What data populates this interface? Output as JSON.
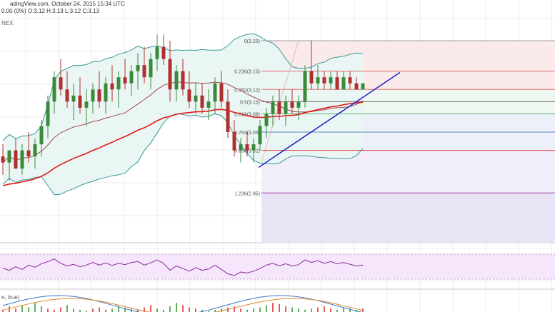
{
  "header": {
    "line1": "adingView.com, October 24, 2015 15:34 UTC",
    "line2": "0.00 (0%)  O:3.12  H:3.13  L:3.12  C:3.13",
    "exchange": "NEX"
  },
  "indicators": {
    "macd_label": "e, true)"
  },
  "colors": {
    "up": "#3a8a3a",
    "down": "#b03030",
    "ema": "#e01818",
    "sma": "#a04848",
    "bb": "#3a9898",
    "bb_fill": "#eaf6f4",
    "trend": "#2020c8",
    "rsi": "#8a2a9a",
    "rsi_bg": "#f5e6fb",
    "fib_zone": "#f0eef8",
    "grid": "#eeeeee"
  },
  "fibonacci": [
    {
      "ratio": "0",
      "label": "0(3.20)",
      "price": 3.2,
      "color": "#999999"
    },
    {
      "ratio": "0.236",
      "label": "0.236(3.15)",
      "price": 3.15,
      "color": "#e07070"
    },
    {
      "ratio": "0.382",
      "label": "0.382(3.12)",
      "price": 3.12,
      "color": "#e07070"
    },
    {
      "ratio": "0.5",
      "label": "0.5(3.10)",
      "price": 3.1,
      "color": "#707070"
    },
    {
      "ratio": "0.618",
      "label": "0.618(3.08)",
      "price": 3.08,
      "color": "#60b080"
    },
    {
      "ratio": "0.764",
      "label": "0.764(3.05)",
      "price": 3.05,
      "color": "#6080c0"
    },
    {
      "ratio": "0.886",
      "label": "0.886(3.02)",
      "price": 3.02,
      "color": "#e04040"
    },
    {
      "ratio": "1.236",
      "label": "1.236(2.95)",
      "price": 2.95,
      "color": "#a040b0"
    }
  ],
  "chart_data": {
    "type": "candlestick",
    "title": "",
    "price_range": [
      2.88,
      3.22
    ],
    "candles": [
      [
        3.01,
        3.03,
        2.98,
        3.0
      ],
      [
        3.0,
        3.02,
        2.97,
        3.02
      ],
      [
        3.02,
        3.04,
        2.99,
        2.99
      ],
      [
        2.99,
        3.03,
        2.98,
        3.02
      ],
      [
        3.02,
        3.05,
        3.0,
        3.01
      ],
      [
        3.01,
        3.04,
        2.99,
        3.03
      ],
      [
        3.03,
        3.07,
        3.01,
        3.06
      ],
      [
        3.06,
        3.11,
        3.04,
        3.1
      ],
      [
        3.1,
        3.15,
        3.08,
        3.14
      ],
      [
        3.14,
        3.17,
        3.11,
        3.12
      ],
      [
        3.12,
        3.15,
        3.09,
        3.1
      ],
      [
        3.1,
        3.13,
        3.07,
        3.11
      ],
      [
        3.11,
        3.14,
        3.08,
        3.09
      ],
      [
        3.09,
        3.12,
        3.06,
        3.1
      ],
      [
        3.1,
        3.13,
        3.08,
        3.12
      ],
      [
        3.12,
        3.15,
        3.09,
        3.1
      ],
      [
        3.1,
        3.14,
        3.08,
        3.13
      ],
      [
        3.13,
        3.16,
        3.1,
        3.12
      ],
      [
        3.12,
        3.15,
        3.09,
        3.14
      ],
      [
        3.14,
        3.17,
        3.12,
        3.13
      ],
      [
        3.13,
        3.16,
        3.11,
        3.15
      ],
      [
        3.15,
        3.18,
        3.12,
        3.16
      ],
      [
        3.16,
        3.19,
        3.13,
        3.14
      ],
      [
        3.14,
        3.18,
        3.12,
        3.17
      ],
      [
        3.17,
        3.21,
        3.15,
        3.19
      ],
      [
        3.19,
        3.21,
        3.16,
        3.17
      ],
      [
        3.17,
        3.2,
        3.1,
        3.12
      ],
      [
        3.12,
        3.16,
        3.1,
        3.15
      ],
      [
        3.15,
        3.17,
        3.11,
        3.12
      ],
      [
        3.12,
        3.15,
        3.09,
        3.1
      ],
      [
        3.1,
        3.13,
        3.08,
        3.11
      ],
      [
        3.11,
        3.13,
        3.08,
        3.09
      ],
      [
        3.09,
        3.12,
        3.07,
        3.1
      ],
      [
        3.1,
        3.14,
        3.08,
        3.13
      ],
      [
        3.13,
        3.15,
        3.09,
        3.1
      ],
      [
        3.1,
        3.12,
        3.04,
        3.05
      ],
      [
        3.05,
        3.07,
        3.01,
        3.02
      ],
      [
        3.02,
        3.04,
        3.0,
        3.03
      ],
      [
        3.03,
        3.05,
        3.01,
        3.02
      ],
      [
        3.02,
        3.04,
        3.0,
        3.03
      ],
      [
        3.03,
        3.07,
        3.02,
        3.06
      ],
      [
        3.06,
        3.09,
        3.04,
        3.08
      ],
      [
        3.08,
        3.11,
        3.06,
        3.1
      ],
      [
        3.1,
        3.12,
        3.07,
        3.08
      ],
      [
        3.08,
        3.11,
        3.06,
        3.1
      ],
      [
        3.1,
        3.12,
        3.08,
        3.09
      ],
      [
        3.09,
        3.11,
        3.07,
        3.1
      ],
      [
        3.1,
        3.16,
        3.09,
        3.15
      ],
      [
        3.15,
        3.2,
        3.12,
        3.13
      ],
      [
        3.13,
        3.16,
        3.12,
        3.14
      ],
      [
        3.14,
        3.15,
        3.12,
        3.13
      ],
      [
        3.13,
        3.15,
        3.12,
        3.14
      ],
      [
        3.14,
        3.15,
        3.12,
        3.12
      ],
      [
        3.12,
        3.15,
        3.12,
        3.14
      ],
      [
        3.14,
        3.15,
        3.12,
        3.13
      ],
      [
        3.13,
        3.14,
        3.12,
        3.12
      ],
      [
        3.12,
        3.13,
        3.12,
        3.13
      ]
    ],
    "rsi": [
      45,
      40,
      48,
      42,
      52,
      47,
      55,
      60,
      66,
      56,
      50,
      54,
      48,
      52,
      58,
      52,
      57,
      51,
      56,
      53,
      58,
      60,
      52,
      57,
      64,
      56,
      40,
      50,
      44,
      38,
      46,
      40,
      43,
      52,
      42,
      32,
      28,
      36,
      34,
      38,
      44,
      52,
      56,
      50,
      55,
      50,
      53,
      64,
      58,
      62,
      56,
      60,
      55,
      58,
      54,
      50,
      52
    ],
    "rsi_range": [
      0,
      100
    ],
    "volume_like_bars": [
      2,
      5,
      3,
      6,
      4,
      8,
      5,
      3,
      2,
      4,
      6,
      3,
      2,
      1,
      3,
      4,
      2,
      3,
      5,
      4,
      3,
      2,
      4,
      6,
      3,
      2,
      5,
      8,
      6,
      4,
      3,
      2,
      1,
      2,
      3,
      4,
      5,
      3,
      2,
      3,
      4,
      6,
      8,
      7,
      5,
      4,
      3,
      2,
      3,
      4,
      5,
      3,
      2,
      4,
      3,
      2,
      3
    ]
  }
}
